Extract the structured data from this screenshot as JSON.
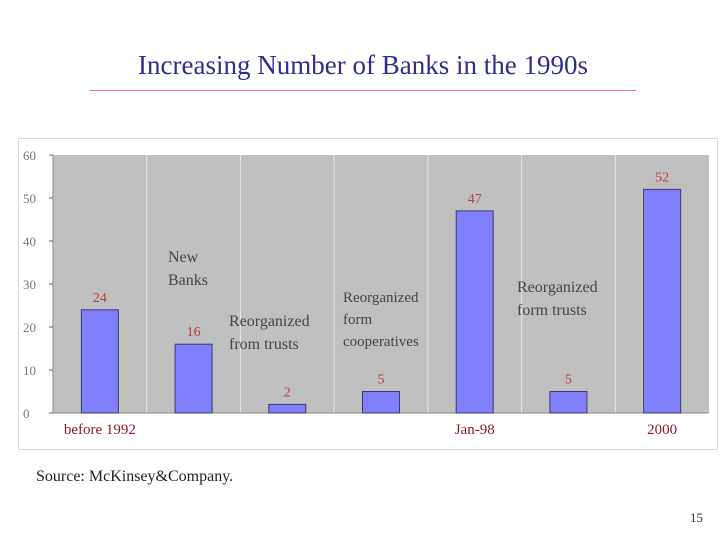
{
  "slide": {
    "title": "Increasing Number of Banks in the 1990s",
    "source": "Source: McKinsey&Company.",
    "page_number": "15"
  },
  "colors": {
    "title": "#2f2e8c",
    "plot_bg": "#c0c0c0",
    "bar_fill": "#8080ff",
    "bar_stroke": "#3a3a6a",
    "value_label": "#c03a3a",
    "axis_label": "#8a1a1a",
    "rule": "#e07a8a"
  },
  "annotations": [
    {
      "id": "new-banks",
      "text": "New\nBanks"
    },
    {
      "id": "reorganized-from-trusts",
      "text": "Reorganized\nfrom trusts"
    },
    {
      "id": "reorganized-form-cooperatives",
      "text": "Reorganized\nform\ncooperatives"
    },
    {
      "id": "reorganized-form-trusts",
      "text": "Reorganized\nform trusts"
    }
  ],
  "chart_data": {
    "type": "bar",
    "title": "Increasing Number of Banks in the 1990s",
    "categories": [
      "before 1992",
      "",
      "",
      "",
      "Jan-98",
      "",
      "2000"
    ],
    "values": [
      24,
      16,
      2,
      5,
      47,
      5,
      52
    ],
    "value_labels": [
      "24",
      "16",
      "2",
      "5",
      "47",
      "5",
      "52"
    ],
    "yticks": [
      "0",
      "10",
      "20",
      "30",
      "40",
      "50",
      "60"
    ],
    "ylim": [
      0,
      60
    ],
    "grid": "vertical",
    "legend": "none"
  }
}
